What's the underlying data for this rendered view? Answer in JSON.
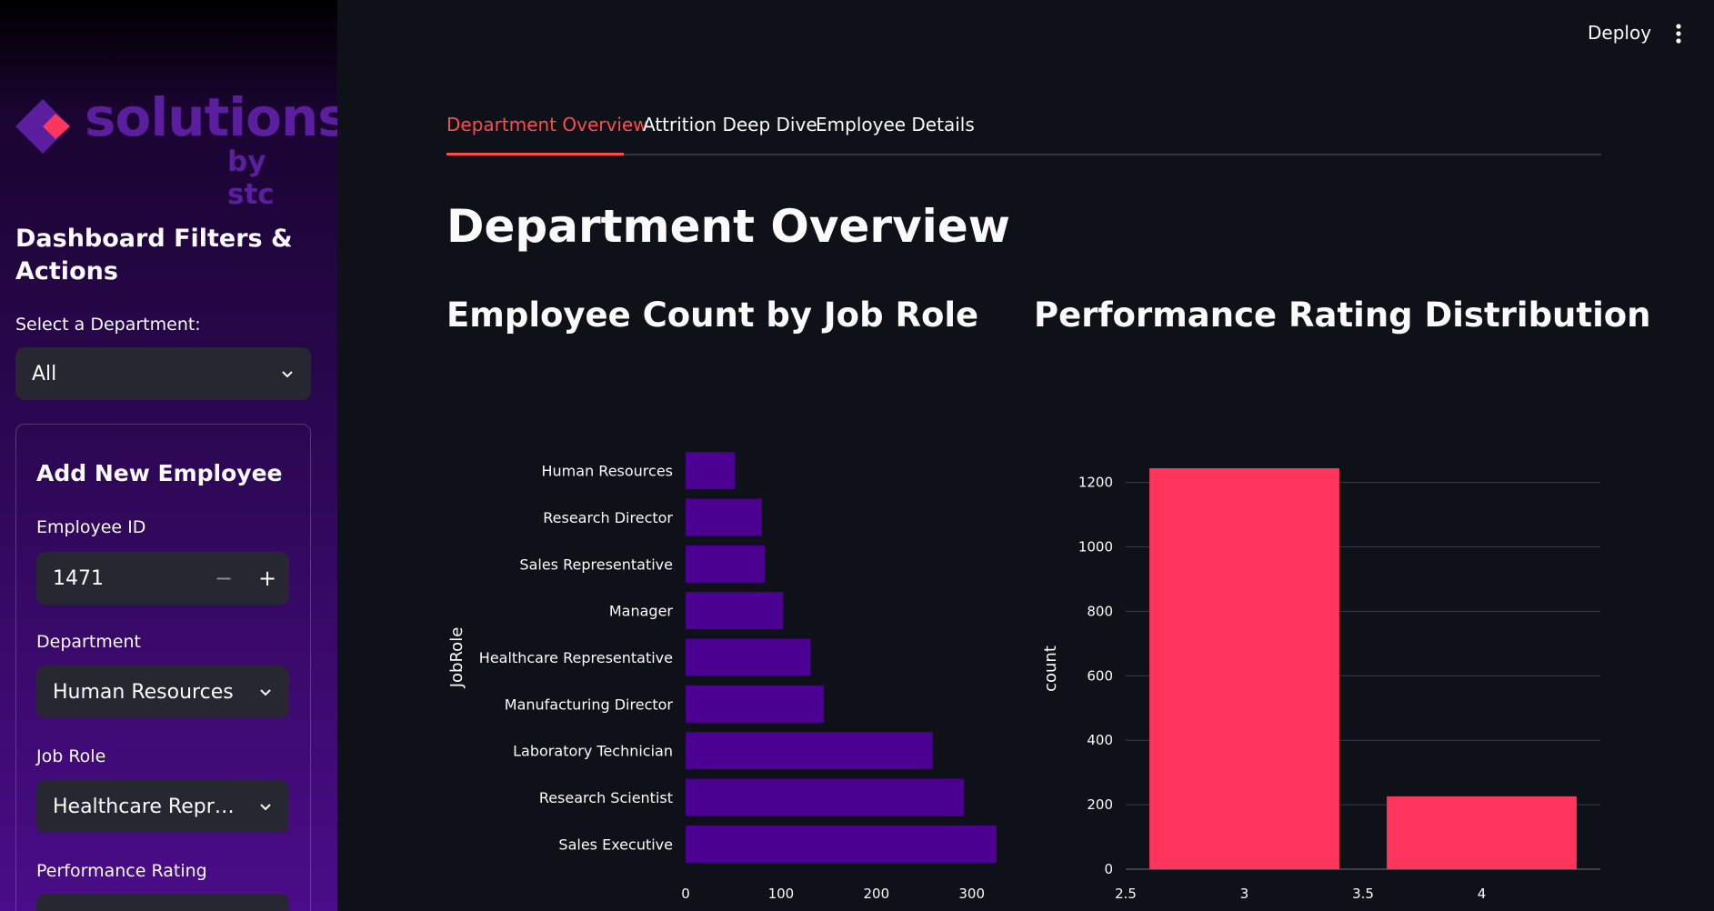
{
  "header": {
    "deploy_label": "Deploy"
  },
  "sidebar": {
    "logo": {
      "word": "solutions",
      "by": "by stc"
    },
    "title": "Dashboard Filters & Actions",
    "department_filter": {
      "label": "Select a Department:",
      "value": "All"
    },
    "form": {
      "title": "Add New Employee",
      "employee_id": {
        "label": "Employee ID",
        "value": "1471",
        "minus": "−",
        "plus": "+"
      },
      "department": {
        "label": "Department",
        "value": "Human Resources"
      },
      "job_role": {
        "label": "Job Role",
        "value": "Healthcare Repr…"
      },
      "performance_rating": {
        "label": "Performance Rating"
      }
    }
  },
  "tabs": [
    {
      "label": "Department Overview",
      "active": true
    },
    {
      "label": "Attrition Deep Dive",
      "active": false
    },
    {
      "label": "Employee Details",
      "active": false
    }
  ],
  "main": {
    "page_title": "Department Overview"
  },
  "colors": {
    "accent": "#ff4b4b",
    "bar_purple": "#4b0092",
    "bar_pink": "#ff355e"
  },
  "chart_data": [
    {
      "type": "bar",
      "orientation": "horizontal",
      "title": "Employee Count by Job Role",
      "ylabel": "JobRole",
      "xlabel": "",
      "categories": [
        "Human Resources",
        "Research Director",
        "Sales Representative",
        "Manager",
        "Healthcare Representative",
        "Manufacturing Director",
        "Laboratory Technician",
        "Research Scientist",
        "Sales Executive"
      ],
      "values": [
        52,
        80,
        83,
        102,
        131,
        145,
        259,
        292,
        326
      ],
      "x_ticks": [
        0,
        100,
        200,
        300
      ],
      "xlim": [
        0,
        326
      ],
      "color": "#4b0092"
    },
    {
      "type": "bar",
      "title": "Performance Rating Distribution",
      "ylabel": "count",
      "xlabel": "",
      "x": [
        3,
        4
      ],
      "values": [
        1244,
        226
      ],
      "x_ticks": [
        2.5,
        3,
        3.5,
        4
      ],
      "y_ticks": [
        0,
        200,
        400,
        600,
        800,
        1000,
        1200
      ],
      "ylim": [
        0,
        1244
      ],
      "xlim": [
        2.5,
        4.5
      ],
      "grid": true,
      "color": "#ff355e"
    }
  ]
}
